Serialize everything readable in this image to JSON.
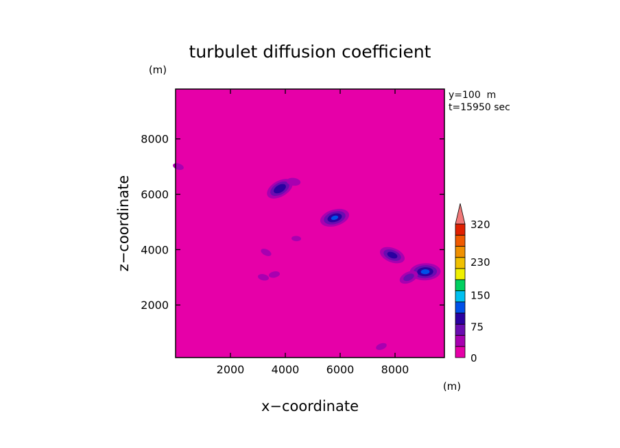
{
  "chart_data": {
    "type": "heatmap",
    "title": "turbulet diffusion coefficient",
    "xlabel": "x−coordinate",
    "ylabel": "z−coordinate",
    "x_unit": "(m)",
    "y_unit": "(m)",
    "annotations": [
      "y=100  m",
      "t=15950 sec"
    ],
    "xlim": [
      0,
      9800
    ],
    "ylim": [
      100,
      9800
    ],
    "x_ticks": [
      2000,
      4000,
      6000,
      8000
    ],
    "y_ticks": [
      2000,
      4000,
      6000,
      8000
    ],
    "background_level": 0,
    "colorbar": {
      "levels": [
        0,
        25,
        50,
        75,
        100,
        125,
        150,
        175,
        200,
        230,
        260,
        290,
        320
      ],
      "tick_labels": [
        "0",
        "75",
        "150",
        "230",
        "320"
      ],
      "tick_values": [
        0,
        75,
        150,
        230,
        320
      ],
      "extend": "max",
      "colors": [
        "#e600a8",
        "#a800b0",
        "#6a0cb0",
        "#2a00a0",
        "#0050e8",
        "#00c0f0",
        "#00d060",
        "#f0f000",
        "#f0c000",
        "#f09000",
        "#f05a00",
        "#e02000",
        "#f07878"
      ]
    },
    "features": [
      {
        "x": 3800,
        "z": 6200,
        "peak": 95
      },
      {
        "x": 4300,
        "z": 6450,
        "peak": 40
      },
      {
        "x": 5800,
        "z": 5150,
        "peak": 100
      },
      {
        "x": 7900,
        "z": 3800,
        "peak": 85
      },
      {
        "x": 9100,
        "z": 3200,
        "peak": 105
      },
      {
        "x": 8500,
        "z": 3000,
        "peak": 60
      },
      {
        "x": 3200,
        "z": 3000,
        "peak": 30
      },
      {
        "x": 3600,
        "z": 3100,
        "peak": 30
      },
      {
        "x": 3300,
        "z": 3900,
        "peak": 30
      },
      {
        "x": 4400,
        "z": 4400,
        "peak": 25
      },
      {
        "x": 7500,
        "z": 500,
        "peak": 30
      },
      {
        "x": 100,
        "z": 7000,
        "peak": 30
      }
    ]
  }
}
